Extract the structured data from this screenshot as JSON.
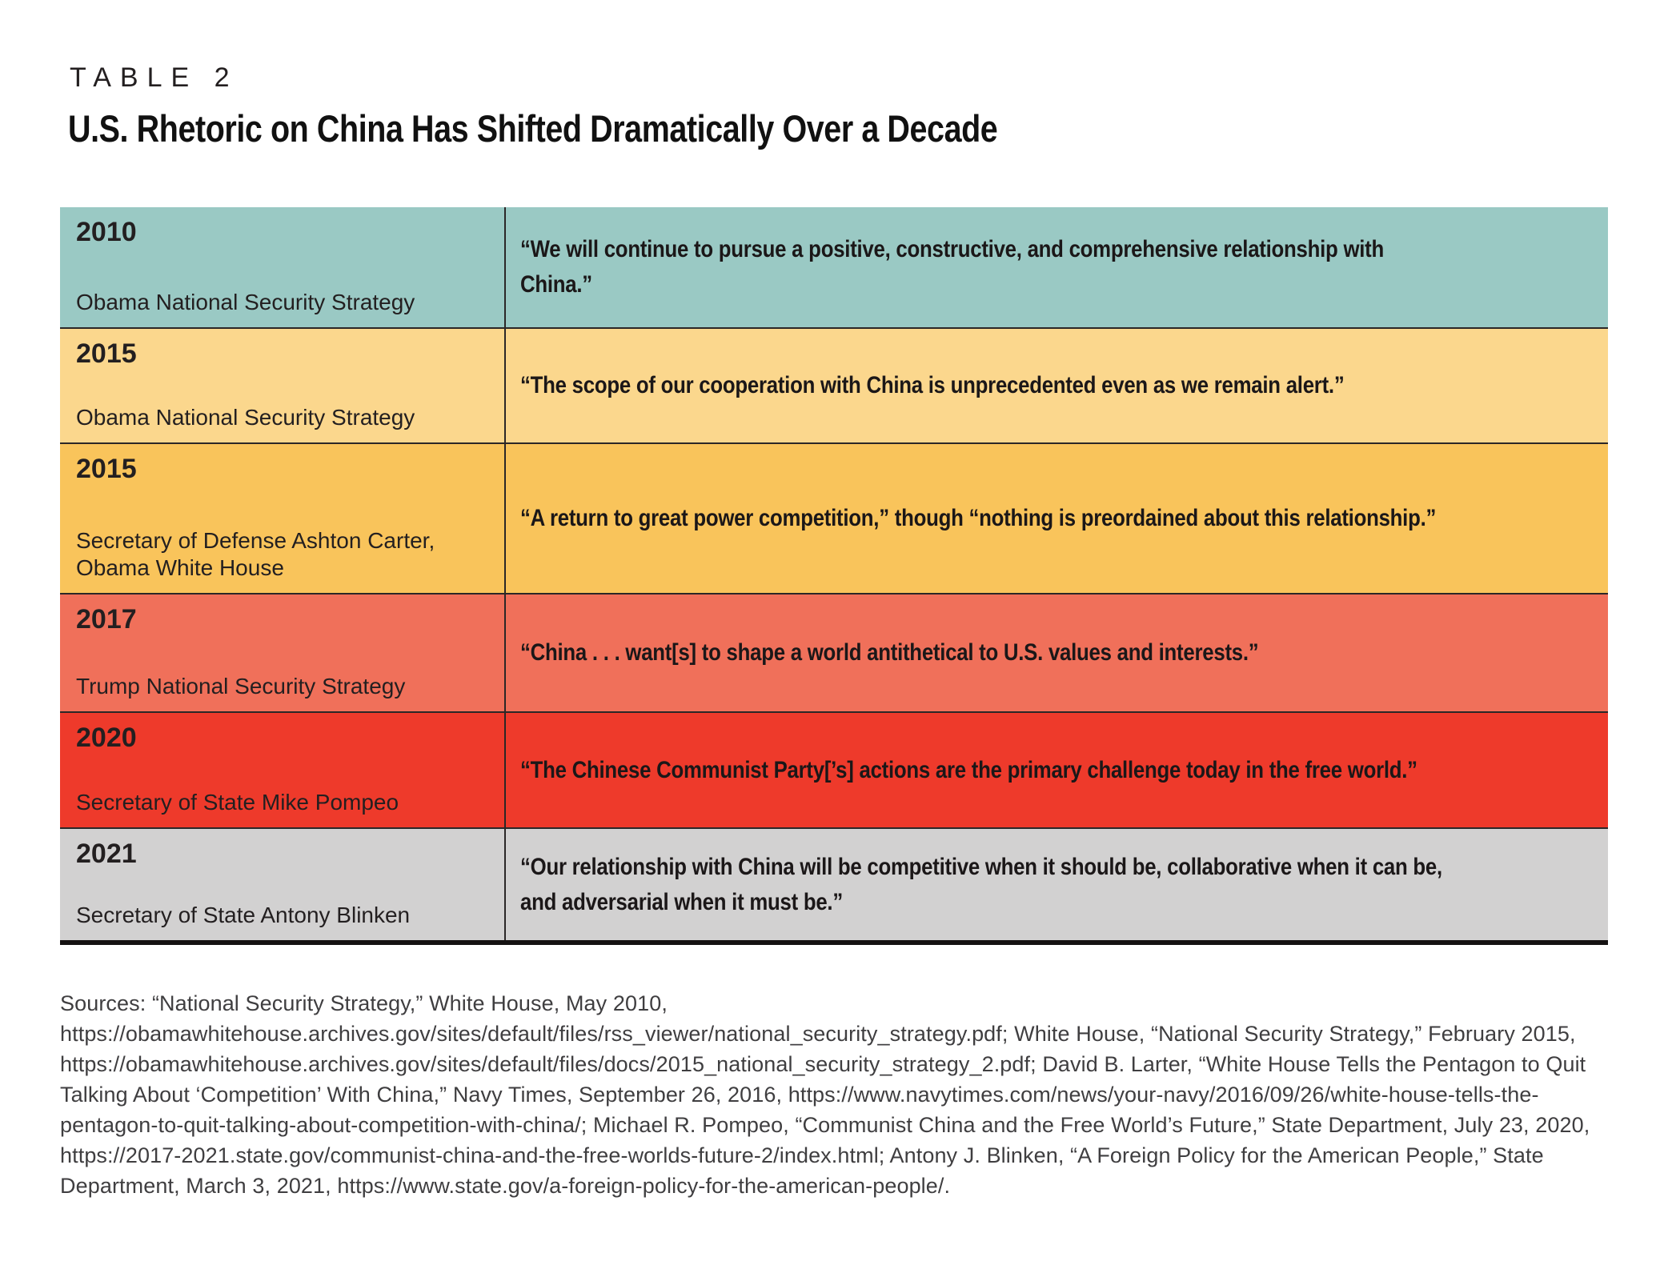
{
  "header": {
    "kicker": "TABLE 2",
    "title": "U.S. Rhetoric on China Has Shifted Dramatically Over a Decade"
  },
  "table": {
    "rows": [
      {
        "year": "2010",
        "attribution": "Obama National Security Strategy",
        "quote": "“We will continue to pursue a positive, constructive, and comprehensive relationship with China.”",
        "color": "#9ac9c4"
      },
      {
        "year": "2015",
        "attribution": "Obama National Security Strategy",
        "quote": "“The scope of our cooperation with China is unprecedented even as we remain alert.”",
        "color": "#fbd78d"
      },
      {
        "year": "2015",
        "attribution": "Secretary of Defense Ashton Carter, Obama White House",
        "quote": "“A return to great power competition,” though “nothing is preordained about this relationship.”",
        "color": "#f9c45b"
      },
      {
        "year": "2017",
        "attribution": "Trump National Security Strategy",
        "quote": "“China . . . want[s] to shape a world antithetical to U.S. values and interests.”",
        "color": "#f0705a"
      },
      {
        "year": "2020",
        "attribution": "Secretary of State Mike Pompeo",
        "quote": "“The Chinese Communist Party[’s] actions are the primary challenge today in the free world.”",
        "color": "#ee3a2b"
      },
      {
        "year": "2021",
        "attribution": "Secretary of State Antony Blinken",
        "quote": "“Our relationship with China will be competitive when it should be, collaborative when it can be, and adversarial when it must be.”",
        "color": "#d2d1d1"
      }
    ]
  },
  "sources": {
    "text": "Sources: “National Security Strategy,” White House, May 2010, https://obamawhitehouse.archives.gov/sites/default/files/rss_viewer/national_security_strategy.pdf; White House, “National Security Strategy,” February 2015, https://obamawhitehouse.archives.gov/sites/default/files/docs/2015_national_security_strategy_2.pdf; David B. Larter, “White House Tells the Pentagon to Quit Talking About ‘Competition’ With China,” Navy Times, September 26, 2016, https://www.navytimes.com/news/your-navy/2016/09/26/white-house-tells-the-pentagon-to-quit-talking-about-competition-with-china/; Michael R. Pompeo, “Communist China and the Free World’s Future,” State Department, July 23, 2020, https://2017-2021.state.gov/communist-china-and-the-free-worlds-future-2/index.html; Antony J. Blinken, “A Foreign Policy for the American People,” State Department, March 3, 2021, https://www.state.gov/a-foreign-policy-for-the-american-people/."
  }
}
